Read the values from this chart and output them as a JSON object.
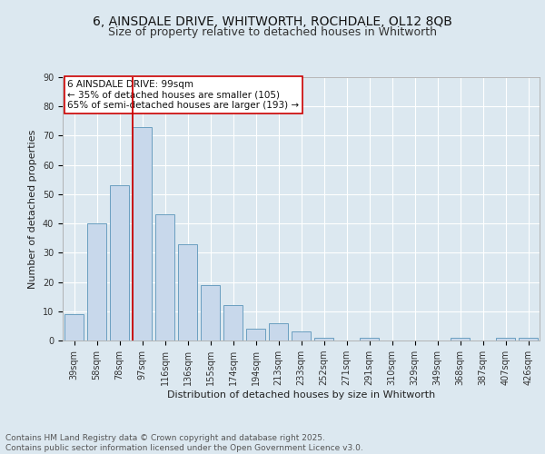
{
  "title_line1": "6, AINSDALE DRIVE, WHITWORTH, ROCHDALE, OL12 8QB",
  "title_line2": "Size of property relative to detached houses in Whitworth",
  "xlabel": "Distribution of detached houses by size in Whitworth",
  "ylabel": "Number of detached properties",
  "bar_color": "#c8d8eb",
  "bar_edge_color": "#6a9fc0",
  "categories": [
    "39sqm",
    "58sqm",
    "78sqm",
    "97sqm",
    "116sqm",
    "136sqm",
    "155sqm",
    "174sqm",
    "194sqm",
    "213sqm",
    "233sqm",
    "252sqm",
    "271sqm",
    "291sqm",
    "310sqm",
    "329sqm",
    "349sqm",
    "368sqm",
    "387sqm",
    "407sqm",
    "426sqm"
  ],
  "values": [
    9,
    40,
    53,
    73,
    43,
    33,
    19,
    12,
    4,
    6,
    3,
    1,
    0,
    1,
    0,
    0,
    0,
    1,
    0,
    1,
    1
  ],
  "vline_color": "#cc0000",
  "vline_index": 3,
  "annotation_text": "6 AINSDALE DRIVE: 99sqm\n← 35% of detached houses are smaller (105)\n65% of semi-detached houses are larger (193) →",
  "annotation_box_color": "#ffffff",
  "annotation_box_edge": "#cc0000",
  "ylim": [
    0,
    90
  ],
  "yticks": [
    0,
    10,
    20,
    30,
    40,
    50,
    60,
    70,
    80,
    90
  ],
  "background_color": "#dce8f0",
  "plot_background": "#dce8f0",
  "grid_color": "#ffffff",
  "footer_text": "Contains HM Land Registry data © Crown copyright and database right 2025.\nContains public sector information licensed under the Open Government Licence v3.0.",
  "title_fontsize": 10,
  "subtitle_fontsize": 9,
  "axis_label_fontsize": 8,
  "tick_fontsize": 7,
  "annotation_fontsize": 7.5,
  "footer_fontsize": 6.5
}
